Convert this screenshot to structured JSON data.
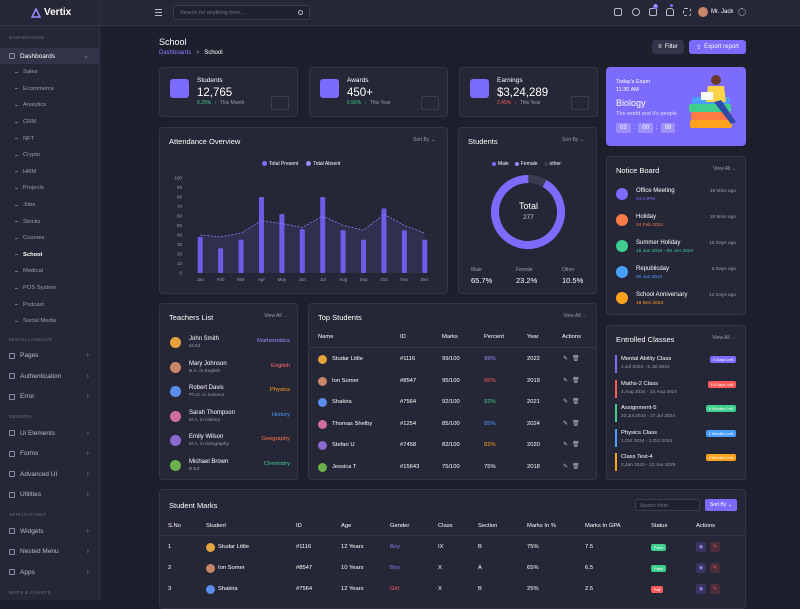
{
  "app": {
    "name": "Vertix"
  },
  "topbar": {
    "search_placeholder": "Search for anything here...",
    "user_name": "Mr. Jack",
    "cart_count": "3",
    "bell_count": "1"
  },
  "sidebar": {
    "sec_dashboards": "DASHBOARDS",
    "dashboards": "Dashboards",
    "subs": [
      "Sales",
      "Ecommerce",
      "Analytics",
      "CRM",
      "NFT",
      "Crypto",
      "HRM",
      "Projects",
      "Jobs",
      "Stocks",
      "Courses",
      "School",
      "Medical",
      "POS System",
      "Podcast",
      "Social Media"
    ],
    "sec_misc": "MISCELLANEOUS",
    "misc": [
      "Pages",
      "Authentication",
      "Error"
    ],
    "sec_general": "GENERAL",
    "general": [
      "Ui Elements",
      "Forms",
      "Advanced UI",
      "Utilities"
    ],
    "sec_apps": "APPLICATIONS",
    "apps": [
      "Widgets",
      "Nested Menu",
      "Apps"
    ],
    "sec_maps": "MAPS & CHARTS"
  },
  "page": {
    "title": "School",
    "crumb_root": "Dashboards",
    "crumb_sep": ">",
    "crumb_current": "School",
    "filter": "Filter",
    "export": "Export report"
  },
  "stats": [
    {
      "label": "Students",
      "value": "12,765",
      "change": "0.25%",
      "dir": "↑",
      "period": "This Month",
      "color": "#3ecf8e"
    },
    {
      "label": "Awards",
      "value": "450+",
      "change": "6.56%",
      "dir": "↑",
      "period": "This Year",
      "color": "#3ecf8e"
    },
    {
      "label": "Earnings",
      "value": "$3,24,289",
      "change": "2.45%",
      "dir": "↓",
      "period": "This Year",
      "color": "#ff5a5a"
    }
  ],
  "exam": {
    "title": "Today's Exam",
    "time": "11:30 AM",
    "subject": "Biology",
    "sub": "The world and it's people",
    "h": "02",
    "m": "00",
    "s": "08"
  },
  "attendance": {
    "title": "Attendance Overview",
    "sort": "Sort By",
    "legend_present": "Total Present",
    "legend_absent": "Total Absent"
  },
  "students_donut": {
    "title": "Students",
    "sort": "Sort By",
    "legend": [
      "Male",
      "Female",
      "other"
    ],
    "center_label": "Total",
    "center_value": "277",
    "stats": [
      {
        "label": "Male",
        "value": "65.7%"
      },
      {
        "label": "Female",
        "value": "23.2%"
      },
      {
        "label": "Other",
        "value": "10.5%"
      }
    ]
  },
  "chart_data": {
    "type": "bar",
    "title": "Attendance Overview",
    "categories": [
      "Jan",
      "Feb",
      "Mar",
      "Apr",
      "May",
      "Jun",
      "Jul",
      "Aug",
      "Sep",
      "Oct",
      "Nov",
      "Dec"
    ],
    "yticks": [
      "0",
      "10",
      "20",
      "30",
      "40",
      "50",
      "60",
      "70",
      "80",
      "90",
      "100"
    ],
    "ylim": [
      0,
      100
    ],
    "series": [
      {
        "name": "Total Present",
        "values": [
          38,
          26,
          35,
          80,
          62,
          46,
          80,
          45,
          35,
          68,
          45,
          35
        ]
      },
      {
        "name": "Total Absent",
        "values": [
          28,
          25,
          32,
          75,
          55,
          42,
          75,
          40,
          28,
          60,
          40,
          30
        ]
      }
    ],
    "line": [
      40,
      38,
      42,
      55,
      52,
      48,
      60,
      50,
      45,
      62,
      50,
      42
    ]
  },
  "notice": {
    "title": "Notice Board",
    "view": "View All",
    "items": [
      {
        "title": "Office Meeting",
        "sub": "04:24PM",
        "ago": "45 Mins ago",
        "color": "#7b6bff"
      },
      {
        "title": "Holiday",
        "sub": "24 Feb 2024",
        "ago": "18 Mins ago",
        "color": "#ff7a45"
      },
      {
        "title": "Summer Holiday",
        "sub": "15 Jun 2024 - 05 Jun 2024",
        "ago": "16 Days ago",
        "color": "#3ecf8e"
      },
      {
        "title": "Republicday",
        "sub": "26 Jan 2024",
        "ago": "5 Days ago",
        "color": "#4a9eff"
      },
      {
        "title": "School Anniversary",
        "sub": "19 Dec 2024",
        "ago": "12 Days ago",
        "color": "#ffa21d"
      }
    ]
  },
  "teachers": {
    "title": "Teachers List",
    "view": "View All",
    "items": [
      {
        "name": "John Smith",
        "deg": "M.Ed",
        "subject": "Mathematics",
        "color": "#9b8cff"
      },
      {
        "name": "Mary Johnson",
        "deg": "B.A. in English",
        "subject": "English",
        "color": "#ff6b6b"
      },
      {
        "name": "Robert Davis",
        "deg": "Ph.D. in Science",
        "subject": "Physics",
        "color": "#ffa21d"
      },
      {
        "name": "Sarah Thompson",
        "deg": "M.A. in History",
        "subject": "History",
        "color": "#4a9eff"
      },
      {
        "name": "Emily Wilson",
        "deg": "M.A. in Geography",
        "subject": "Geography",
        "color": "#ff7a45"
      },
      {
        "name": "Michael Brown",
        "deg": "B.Ed",
        "subject": "Chemistry",
        "color": "#3ecf8e"
      }
    ]
  },
  "top_students": {
    "title": "Top Students",
    "view": "View All",
    "headers": [
      "Name",
      "ID",
      "Marks",
      "Percent",
      "Year",
      "Actions"
    ],
    "rows": [
      {
        "name": "Studar Little",
        "id": "#1116",
        "marks": "99/100",
        "pct": "99%",
        "year": "2022",
        "pc": "#9b8cff"
      },
      {
        "name": "Ion Somer",
        "id": "#8547",
        "marks": "95/100",
        "pct": "95%",
        "year": "2019",
        "pc": "#ff5a5a"
      },
      {
        "name": "Shakira",
        "id": "#7564",
        "marks": "92/100",
        "pct": "92%",
        "year": "2021",
        "pc": "#3ecf8e"
      },
      {
        "name": "Thomas Shelby",
        "id": "#1254",
        "marks": "85/100",
        "pct": "85%",
        "year": "2024",
        "pc": "#4a9eff"
      },
      {
        "name": "Stefan U",
        "id": "#7458",
        "marks": "82/100",
        "pct": "82%",
        "year": "2020",
        "pc": "#ffa21d"
      },
      {
        "name": "Jessica T",
        "id": "#15643",
        "marks": "75/100",
        "pct": "75%",
        "year": "2018",
        "pc": "#fff"
      }
    ]
  },
  "classes": {
    "title": "Entrolled Classes",
    "view": "View All",
    "items": [
      {
        "name": "Mental Ability Class",
        "date": "1,Jul 2024 - 5,Jul 2024",
        "tag": "3 Days Left",
        "color": "#7b6bff"
      },
      {
        "name": "Maths-2 Class",
        "date": "4,Aug 2024 - 10,Aug 2024",
        "tag": "10 Days Left",
        "color": "#ff5a5a"
      },
      {
        "name": "Assignment-5",
        "date": "22,Jul 2024 - 27,Jul 2024",
        "tag": "6 Months Left",
        "color": "#3ecf8e"
      },
      {
        "name": "Physics Class",
        "date": "1,Oct 2024 - 1,Oct 2024",
        "tag": "1 Months Left",
        "color": "#4a9eff"
      },
      {
        "name": "Class Test-4",
        "date": "2,Jan 2025 - 12,Jan 2025",
        "tag": "4 Months Left",
        "color": "#ffa21d"
      }
    ]
  },
  "marks": {
    "title": "Student Marks",
    "search": "Search Here",
    "sort": "Sort By",
    "headers": [
      "S.No",
      "Student",
      "ID",
      "Age",
      "Gender",
      "Class",
      "Section",
      "Marks In %",
      "Marks In GPA",
      "Status",
      "Actions"
    ],
    "rows": [
      {
        "no": "1",
        "name": "Studar Little",
        "id": "#1116",
        "age": "12 Years",
        "gender": "Boy",
        "cls": "IX",
        "sec": "B",
        "pct": "75%",
        "gpa": "7.5",
        "status": "Pass",
        "gc": "#8b7cff",
        "sc": "#3ecf8e"
      },
      {
        "no": "2",
        "name": "Ion Somer",
        "id": "#8547",
        "age": "10 Years",
        "gender": "Boy",
        "cls": "X",
        "sec": "A",
        "pct": "65%",
        "gpa": "6.5",
        "status": "Pass",
        "gc": "#8b7cff",
        "sc": "#3ecf8e"
      },
      {
        "no": "3",
        "name": "Shakira",
        "id": "#7564",
        "age": "12 Years",
        "gender": "Girl",
        "cls": "X",
        "sec": "B",
        "pct": "25%",
        "gpa": "2.5",
        "status": "Fail",
        "gc": "#ff5a5a",
        "sc": "#ff5a5a"
      }
    ]
  }
}
